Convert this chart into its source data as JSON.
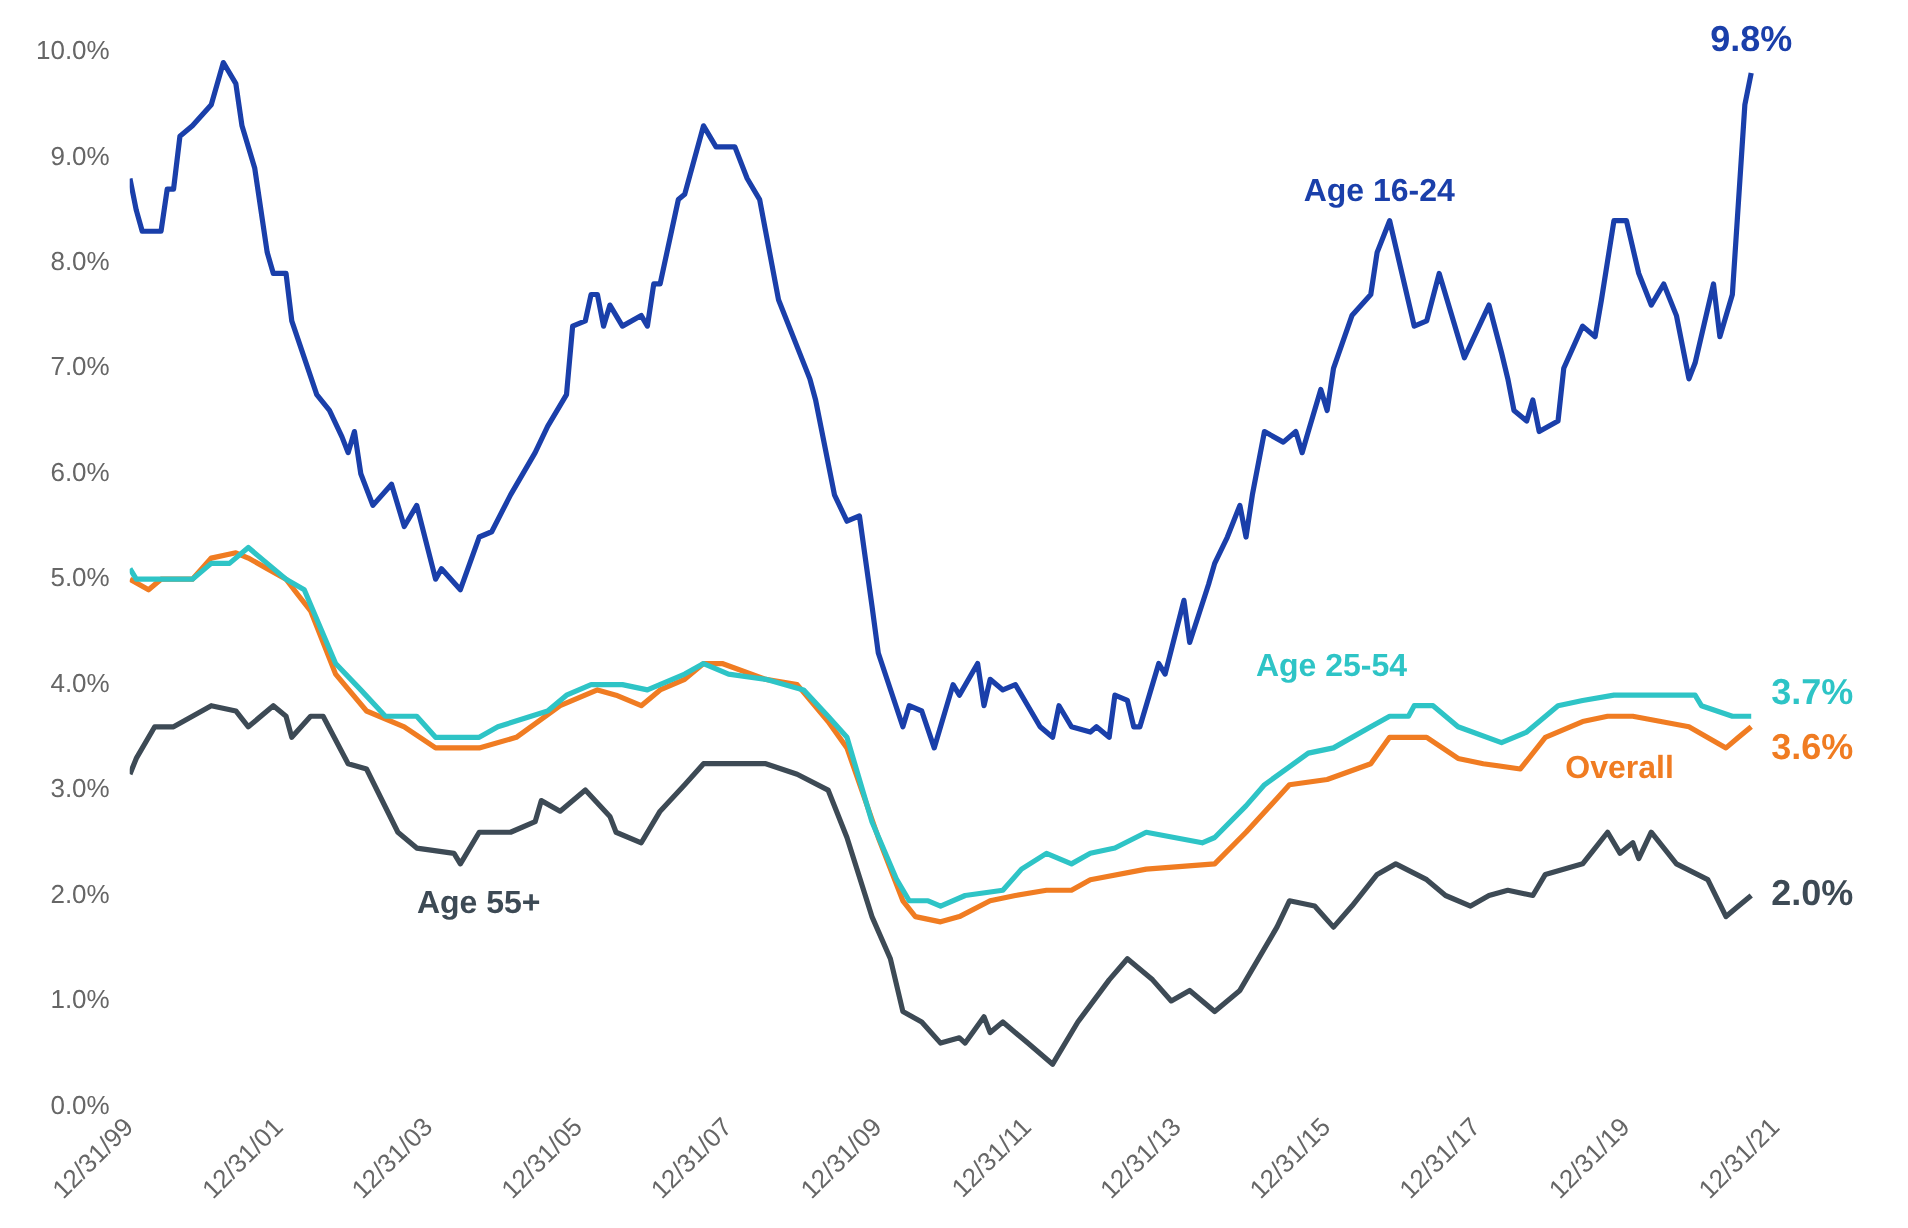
{
  "chart_data": {
    "type": "line",
    "legend": false,
    "marker": "none",
    "line_style": "solid",
    "xlim": [
      "1999-12-31",
      "2021-12-31"
    ],
    "xticks": [
      {
        "value": "1999-12-31",
        "label": "12/31/99"
      },
      {
        "value": "2001-12-31",
        "label": "12/31/01"
      },
      {
        "value": "2003-12-31",
        "label": "12/31/03"
      },
      {
        "value": "2005-12-31",
        "label": "12/31/05"
      },
      {
        "value": "2007-12-31",
        "label": "12/31/07"
      },
      {
        "value": "2009-12-31",
        "label": "12/31/09"
      },
      {
        "value": "2011-12-31",
        "label": "12/31/11"
      },
      {
        "value": "2013-12-31",
        "label": "12/31/13"
      },
      {
        "value": "2015-12-31",
        "label": "12/31/15"
      },
      {
        "value": "2017-12-31",
        "label": "12/31/17"
      },
      {
        "value": "2019-12-31",
        "label": "12/31/19"
      },
      {
        "value": "2021-12-31",
        "label": "12/31/21"
      }
    ],
    "ylim": [
      0,
      10
    ],
    "yticks": [
      {
        "value": 0,
        "label": "0.0%"
      },
      {
        "value": 1,
        "label": "1.0%"
      },
      {
        "value": 2,
        "label": "2.0%"
      },
      {
        "value": 3,
        "label": "3.0%"
      },
      {
        "value": 4,
        "label": "4.0%"
      },
      {
        "value": 5,
        "label": "5.0%"
      },
      {
        "value": 6,
        "label": "6.0%"
      },
      {
        "value": 7,
        "label": "7.0%"
      },
      {
        "value": 8,
        "label": "8.0%"
      },
      {
        "value": 9,
        "label": "9.0%"
      },
      {
        "value": 10,
        "label": "10.0%"
      }
    ],
    "series": [
      {
        "name": "Age 16-24",
        "color": "#1a3faa",
        "x": [
          "2000-01",
          "2000-02",
          "2000-03",
          "2000-06",
          "2000-07",
          "2000-08",
          "2000-09",
          "2000-11",
          "2001-02",
          "2001-04",
          "2001-06",
          "2001-07",
          "2001-09",
          "2001-11",
          "2001-12",
          "2002-02",
          "2002-03",
          "2002-07",
          "2002-09",
          "2002-11",
          "2002-12",
          "2003-01",
          "2003-02",
          "2003-04",
          "2003-07",
          "2003-09",
          "2003-11",
          "2004-02",
          "2004-03",
          "2004-06",
          "2004-09",
          "2004-11",
          "2005-02",
          "2005-06",
          "2005-08",
          "2005-11",
          "2005-12",
          "2006-02",
          "2006-03",
          "2006-04",
          "2006-05",
          "2006-06",
          "2006-08",
          "2006-11",
          "2006-12",
          "2007-01",
          "2007-02",
          "2007-05",
          "2007-06",
          "2007-09",
          "2007-11",
          "2008-02",
          "2008-04",
          "2008-06",
          "2008-09",
          "2009-02",
          "2009-03",
          "2009-06",
          "2009-08",
          "2009-10",
          "2009-12",
          "2010-01",
          "2010-05",
          "2010-06",
          "2010-08",
          "2010-10",
          "2011-01",
          "2011-02",
          "2011-05",
          "2011-06",
          "2011-07",
          "2011-09",
          "2011-11",
          "2012-03",
          "2012-05",
          "2012-06",
          "2012-08",
          "2012-11",
          "2012-12",
          "2013-02",
          "2013-03",
          "2013-05",
          "2013-06",
          "2013-07",
          "2013-10",
          "2013-11",
          "2014-02",
          "2014-03",
          "2014-06",
          "2014-07",
          "2014-09",
          "2014-11",
          "2014-12",
          "2015-01",
          "2015-03",
          "2015-06",
          "2015-08",
          "2015-09",
          "2015-10",
          "2015-12",
          "2016-01",
          "2016-02",
          "2016-05",
          "2016-08",
          "2016-09",
          "2016-11",
          "2017-03",
          "2017-05",
          "2017-07",
          "2017-11",
          "2018-03",
          "2018-05",
          "2018-06",
          "2018-07",
          "2018-09",
          "2018-10",
          "2018-11",
          "2019-02",
          "2019-03",
          "2019-06",
          "2019-08",
          "2019-09",
          "2019-11",
          "2020-01",
          "2020-03",
          "2020-05",
          "2020-07",
          "2020-09",
          "2020-11",
          "2020-12",
          "2021-03",
          "2021-04",
          "2021-06",
          "2021-08",
          "2021-09"
        ],
        "values": [
          8.8,
          8.5,
          8.3,
          8.3,
          8.7,
          8.7,
          9.2,
          9.3,
          9.5,
          9.9,
          9.7,
          9.3,
          8.9,
          8.1,
          7.9,
          7.9,
          7.45,
          6.75,
          6.6,
          6.35,
          6.2,
          6.4,
          6.0,
          5.7,
          5.9,
          5.5,
          5.7,
          5.0,
          5.1,
          4.9,
          5.4,
          5.45,
          5.8,
          6.2,
          6.45,
          6.75,
          7.4,
          7.45,
          7.7,
          7.7,
          7.4,
          7.6,
          7.4,
          7.5,
          7.4,
          7.8,
          7.8,
          8.6,
          8.65,
          9.3,
          9.1,
          9.1,
          8.8,
          8.6,
          7.65,
          6.9,
          6.7,
          5.8,
          5.55,
          5.6,
          4.75,
          4.3,
          3.6,
          3.8,
          3.75,
          3.4,
          4.0,
          3.9,
          4.2,
          3.8,
          4.05,
          3.95,
          4.0,
          3.6,
          3.5,
          3.8,
          3.6,
          3.55,
          3.6,
          3.5,
          3.9,
          3.85,
          3.6,
          3.6,
          4.2,
          4.1,
          4.8,
          4.4,
          4.95,
          5.15,
          5.4,
          5.7,
          5.4,
          5.8,
          6.4,
          6.3,
          6.4,
          6.2,
          6.4,
          6.8,
          6.6,
          7.0,
          7.5,
          7.7,
          8.1,
          8.4,
          7.4,
          7.45,
          7.9,
          7.1,
          7.6,
          7.15,
          6.9,
          6.6,
          6.5,
          6.7,
          6.4,
          6.5,
          7.0,
          7.4,
          7.3,
          7.65,
          8.4,
          8.4,
          7.9,
          7.6,
          7.8,
          7.5,
          6.9,
          7.05,
          7.8,
          7.3,
          7.7,
          9.5,
          9.8
        ]
      },
      {
        "name": "Age 25-54",
        "color": "#2ec4c6",
        "x": [
          "2000-01",
          "2000-02",
          "2000-11",
          "2001-02",
          "2001-05",
          "2001-08",
          "2001-11",
          "2002-02",
          "2002-05",
          "2002-10",
          "2003-02",
          "2003-06",
          "2003-11",
          "2004-02",
          "2004-09",
          "2004-12",
          "2005-08",
          "2005-11",
          "2006-03",
          "2006-08",
          "2006-12",
          "2007-06",
          "2007-09",
          "2008-01",
          "2008-07",
          "2009-01",
          "2009-05",
          "2009-08",
          "2009-12",
          "2010-04",
          "2010-06",
          "2010-09",
          "2010-11",
          "2011-03",
          "2011-09",
          "2011-12",
          "2012-04",
          "2012-08",
          "2012-11",
          "2013-03",
          "2013-08",
          "2014-05",
          "2014-07",
          "2014-12",
          "2015-03",
          "2015-10",
          "2016-02",
          "2016-08",
          "2016-11",
          "2017-02",
          "2017-03",
          "2017-06",
          "2017-10",
          "2018-05",
          "2018-09",
          "2019-02",
          "2019-06",
          "2019-11",
          "2020-12",
          "2021-01",
          "2021-06",
          "2021-09"
        ],
        "values": [
          5.1,
          5.0,
          5.0,
          5.15,
          5.15,
          5.3,
          5.15,
          5.0,
          4.9,
          4.2,
          3.95,
          3.7,
          3.7,
          3.5,
          3.5,
          3.6,
          3.75,
          3.9,
          4.0,
          4.0,
          3.95,
          4.1,
          4.2,
          4.1,
          4.05,
          3.95,
          3.7,
          3.5,
          2.7,
          2.15,
          1.95,
          1.95,
          1.9,
          2.0,
          2.05,
          2.25,
          2.4,
          2.3,
          2.4,
          2.45,
          2.6,
          2.5,
          2.55,
          2.85,
          3.05,
          3.35,
          3.4,
          3.6,
          3.7,
          3.7,
          3.8,
          3.8,
          3.6,
          3.45,
          3.55,
          3.8,
          3.85,
          3.9,
          3.9,
          3.8,
          3.7,
          3.7
        ]
      },
      {
        "name": "Overall",
        "color": "#f07c22",
        "x": [
          "2000-01",
          "2000-04",
          "2000-06",
          "2000-11",
          "2001-02",
          "2001-06",
          "2001-08",
          "2001-11",
          "2002-02",
          "2002-04",
          "2002-06",
          "2002-10",
          "2003-03",
          "2003-09",
          "2004-02",
          "2004-09",
          "2005-03",
          "2005-10",
          "2006-04",
          "2006-07",
          "2006-11",
          "2007-02",
          "2007-06",
          "2007-09",
          "2007-12",
          "2008-07",
          "2008-12",
          "2009-05",
          "2009-08",
          "2010-01",
          "2010-05",
          "2010-07",
          "2010-11",
          "2011-02",
          "2011-07",
          "2011-11",
          "2012-04",
          "2012-08",
          "2012-11",
          "2013-08",
          "2014-07",
          "2014-12",
          "2015-07",
          "2016-01",
          "2016-08",
          "2016-11",
          "2017-05",
          "2017-10",
          "2018-02",
          "2018-08",
          "2018-12",
          "2019-06",
          "2019-10",
          "2020-02",
          "2020-11",
          "2021-05",
          "2021-07",
          "2021-09"
        ],
        "values": [
          5.0,
          4.9,
          5.0,
          5.0,
          5.2,
          5.25,
          5.2,
          5.1,
          5.0,
          4.85,
          4.7,
          4.1,
          3.75,
          3.6,
          3.4,
          3.4,
          3.5,
          3.8,
          3.95,
          3.9,
          3.8,
          3.95,
          4.05,
          4.2,
          4.2,
          4.05,
          4.0,
          3.65,
          3.4,
          2.55,
          1.95,
          1.8,
          1.75,
          1.8,
          1.95,
          2.0,
          2.05,
          2.05,
          2.15,
          2.25,
          2.3,
          2.6,
          3.05,
          3.1,
          3.25,
          3.5,
          3.5,
          3.3,
          3.25,
          3.2,
          3.5,
          3.65,
          3.7,
          3.7,
          3.6,
          3.4,
          3.5,
          3.6
        ]
      },
      {
        "name": "Age 55+",
        "color": "#3d4a55",
        "x": [
          "2000-01",
          "2000-02",
          "2000-05",
          "2000-08",
          "2000-11",
          "2001-02",
          "2001-06",
          "2001-08",
          "2001-12",
          "2002-02",
          "2002-03",
          "2002-06",
          "2002-08",
          "2002-12",
          "2003-03",
          "2003-08",
          "2003-11",
          "2004-05",
          "2004-06",
          "2004-09",
          "2005-02",
          "2005-06",
          "2005-07",
          "2005-10",
          "2006-02",
          "2006-06",
          "2006-07",
          "2006-11",
          "2007-02",
          "2007-06",
          "2007-09",
          "2008-02",
          "2008-07",
          "2008-12",
          "2009-05",
          "2009-08",
          "2009-12",
          "2010-03",
          "2010-05",
          "2010-08",
          "2010-11",
          "2011-02",
          "2011-03",
          "2011-06",
          "2011-07",
          "2011-09",
          "2012-01",
          "2012-05",
          "2012-09",
          "2013-02",
          "2013-05",
          "2013-09",
          "2013-12",
          "2014-03",
          "2014-07",
          "2014-11",
          "2015-05",
          "2015-07",
          "2015-11",
          "2016-02",
          "2016-05",
          "2016-09",
          "2016-12",
          "2017-05",
          "2017-08",
          "2017-12",
          "2018-03",
          "2018-06",
          "2018-10",
          "2018-12",
          "2019-06",
          "2019-08",
          "2019-10",
          "2019-12",
          "2020-02",
          "2020-03",
          "2020-05",
          "2020-09",
          "2021-02",
          "2021-05",
          "2021-07",
          "2021-09"
        ],
        "values": [
          3.15,
          3.3,
          3.6,
          3.6,
          3.7,
          3.8,
          3.75,
          3.6,
          3.8,
          3.7,
          3.5,
          3.7,
          3.7,
          3.25,
          3.2,
          2.6,
          2.45,
          2.4,
          2.3,
          2.6,
          2.6,
          2.7,
          2.9,
          2.8,
          3.0,
          2.75,
          2.6,
          2.5,
          2.8,
          3.05,
          3.25,
          3.25,
          3.25,
          3.15,
          3.0,
          2.55,
          1.8,
          1.4,
          0.9,
          0.8,
          0.6,
          0.65,
          0.6,
          0.85,
          0.7,
          0.8,
          0.6,
          0.4,
          0.8,
          1.2,
          1.4,
          1.2,
          1.0,
          1.1,
          0.9,
          1.1,
          1.7,
          1.95,
          1.9,
          1.7,
          1.9,
          2.2,
          2.3,
          2.15,
          2.0,
          1.9,
          2.0,
          2.05,
          2.0,
          2.2,
          2.3,
          2.45,
          2.6,
          2.4,
          2.5,
          2.35,
          2.6,
          2.3,
          2.15,
          1.8,
          1.9,
          2.0
        ]
      }
    ],
    "annotations": [
      {
        "text": "9.8%",
        "x": "2021-09",
        "y": 9.8
      },
      {
        "text": "3.7%",
        "x": "2021-09",
        "y": 3.7
      },
      {
        "text": "3.6%",
        "x": "2021-09",
        "y": 3.6
      },
      {
        "text": "2.0%",
        "x": "2021-09",
        "y": 2.0
      }
    ]
  }
}
